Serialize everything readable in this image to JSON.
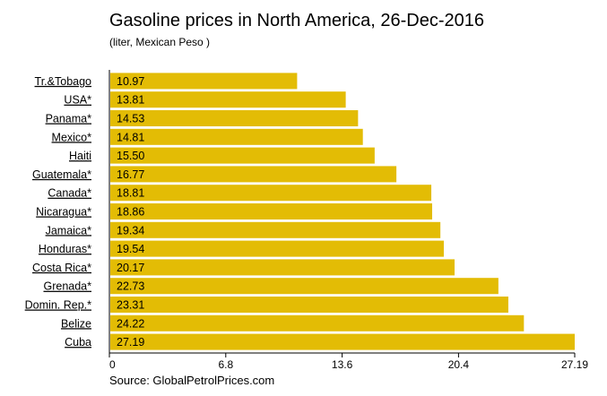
{
  "chart_data": {
    "type": "bar",
    "orientation": "horizontal",
    "title": "Gasoline prices in North America, 26-Dec-2016",
    "subtitle": "(liter, Mexican Peso )",
    "categories": [
      "Tr.&Tobago",
      "USA*",
      "Panama*",
      "Mexico*",
      "Haiti",
      "Guatemala*",
      "Canada*",
      "Nicaragua*",
      "Jamaica*",
      "Honduras*",
      "Costa Rica*",
      "Grenada*",
      "Domin. Rep.*",
      "Belize",
      "Cuba"
    ],
    "values": [
      10.97,
      13.81,
      14.53,
      14.81,
      15.5,
      16.77,
      18.81,
      18.86,
      19.34,
      19.54,
      20.17,
      22.73,
      23.31,
      24.22,
      27.19
    ],
    "value_labels": [
      "10.97",
      "13.81",
      "14.53",
      "14.81",
      "15.50",
      "16.77",
      "18.81",
      "18.86",
      "19.34",
      "19.54",
      "20.17",
      "22.73",
      "23.31",
      "24.22",
      "27.19"
    ],
    "xlim": [
      0,
      27.19
    ],
    "xticks": [
      0,
      6.8,
      13.6,
      20.4,
      27.19
    ],
    "xtick_labels": [
      "0",
      "6.8",
      "13.6",
      "20.4",
      "27.19"
    ],
    "xlabel": "",
    "ylabel": "",
    "grid": false,
    "bar_color": "#E3BC05"
  },
  "source": "Source: GlobalPetrolPrices.com"
}
